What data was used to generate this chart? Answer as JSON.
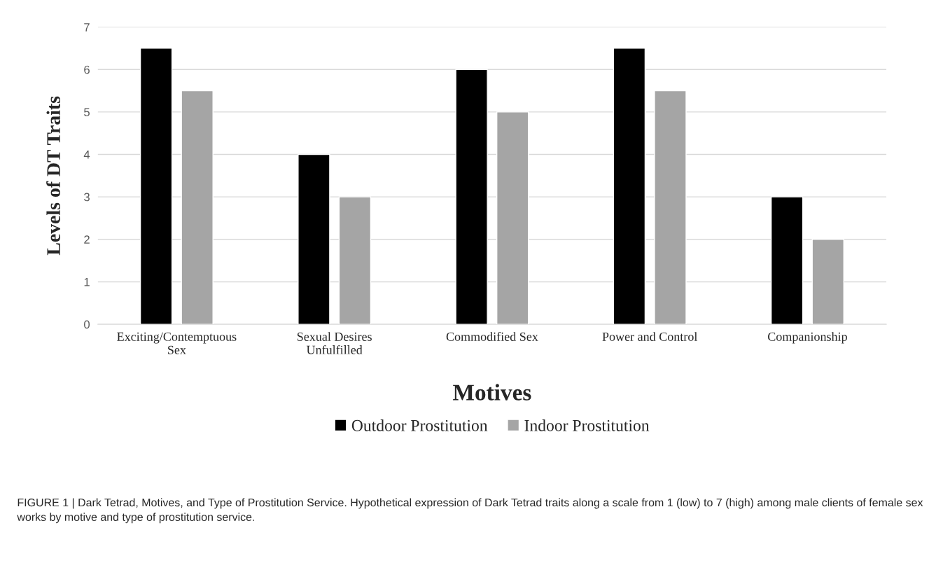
{
  "chart_data": {
    "type": "bar",
    "xlabel": "Motives",
    "ylabel": "Levels of DT Traits",
    "categories": [
      "Exciting/Contemptuous Sex",
      "Sexual Desires Unfulfilled",
      "Commodified Sex",
      "Power and Control",
      "Companionship"
    ],
    "series": [
      {
        "name": "Outdoor Prostitution",
        "color": "#000000",
        "values": [
          6.5,
          4,
          6,
          6.5,
          3
        ]
      },
      {
        "name": "Indoor Prostitution",
        "color": "#a5a5a5",
        "values": [
          5.5,
          3,
          5,
          5.5,
          2
        ]
      }
    ],
    "ylim": [
      0,
      7
    ],
    "yticks": [
      0,
      1,
      2,
      3,
      4,
      5,
      6,
      7
    ],
    "grid": "y",
    "legend": "bottom",
    "annotations": [
      "FIGURE 1 | Dark Tetrad, Motives, and Type of Prostitution Service. Hypothetical expression of Dark Tetrad traits along a scale from 1 (low) to 7 (high) among male clients of female sex works by motive and type of prostitution service."
    ]
  }
}
